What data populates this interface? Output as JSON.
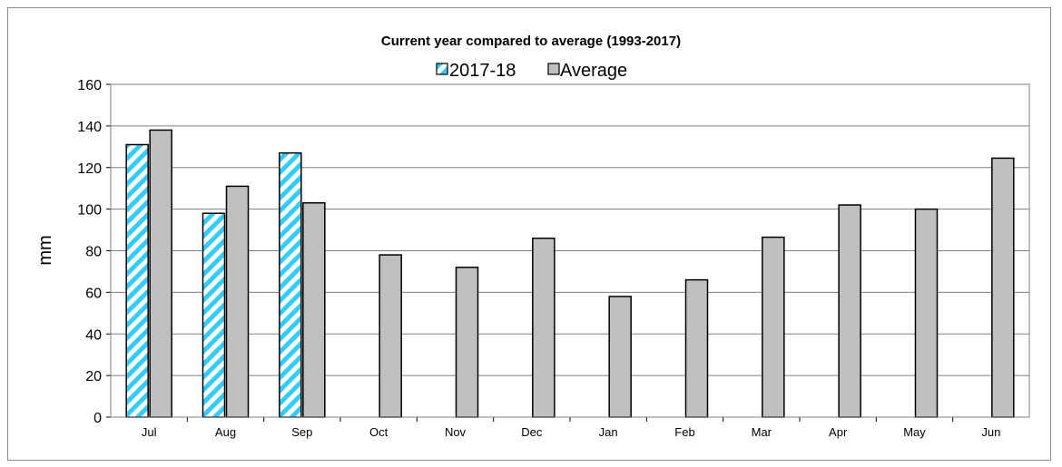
{
  "chart_data": {
    "type": "bar",
    "title": "Current year compared to average (1993-2017)",
    "xlabel": "",
    "ylabel": "mm",
    "ylim": [
      0,
      160
    ],
    "yticks": [
      0,
      20,
      40,
      60,
      80,
      100,
      120,
      140,
      160
    ],
    "categories": [
      "Jul",
      "Aug",
      "Sep",
      "Oct",
      "Nov",
      "Dec",
      "Jan",
      "Feb",
      "Mar",
      "Apr",
      "May",
      "Jun"
    ],
    "series": [
      {
        "name": "2017-18",
        "values": [
          131,
          98,
          127,
          null,
          null,
          null,
          null,
          null,
          null,
          null,
          null,
          null
        ],
        "color": "#33ccff",
        "pattern": "diagonal-stripes"
      },
      {
        "name": "Average",
        "values": [
          138,
          111,
          103,
          78,
          72,
          86,
          58,
          66,
          86.5,
          102,
          100,
          124.5
        ],
        "color": "#c0c0c0"
      }
    ],
    "grid": true,
    "legend_position": "top-center"
  }
}
